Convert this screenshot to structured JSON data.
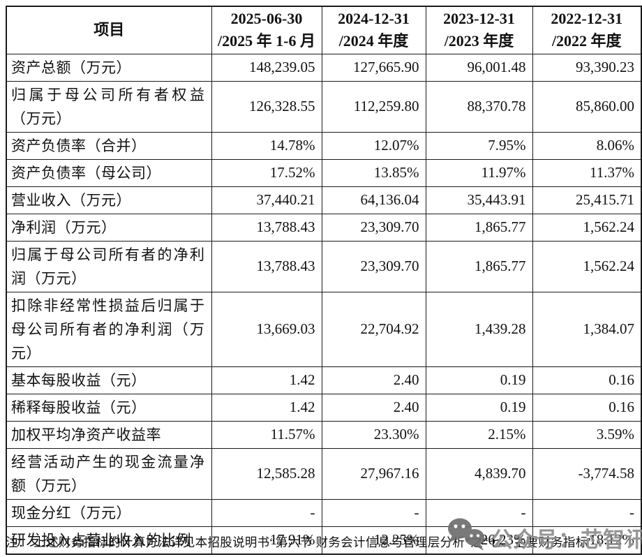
{
  "table": {
    "header": {
      "item_label": "项目",
      "periods": [
        {
          "line1": "2025-06-30",
          "line2": "/2025 年 1-6 月"
        },
        {
          "line1": "2024-12-31",
          "line2": "/2024 年度"
        },
        {
          "line1": "2023-12-31",
          "line2": "/2023 年度"
        },
        {
          "line1": "2022-12-31",
          "line2": "/2022 年度"
        }
      ]
    },
    "rows": [
      {
        "label": "资产总额（万元）",
        "tall": false,
        "values": [
          "148,239.05",
          "127,665.90",
          "96,001.48",
          "93,390.23"
        ]
      },
      {
        "label": "归属于母公司所有者权益（万元）",
        "tall": true,
        "values": [
          "126,328.55",
          "112,259.80",
          "88,370.78",
          "85,860.00"
        ]
      },
      {
        "label": "资产负债率（合并）",
        "tall": false,
        "values": [
          "14.78%",
          "12.07%",
          "7.95%",
          "8.06%"
        ]
      },
      {
        "label": "资产负债率（母公司）",
        "tall": false,
        "values": [
          "17.52%",
          "13.85%",
          "11.97%",
          "11.37%"
        ]
      },
      {
        "label": "营业收入（万元）",
        "tall": false,
        "values": [
          "37,440.21",
          "64,136.04",
          "35,443.91",
          "25,415.71"
        ]
      },
      {
        "label": "净利润（万元）",
        "tall": false,
        "values": [
          "13,788.43",
          "23,309.70",
          "1,865.77",
          "1,562.24"
        ]
      },
      {
        "label": "归属于母公司所有者的净利润（万元）",
        "tall": true,
        "values": [
          "13,788.43",
          "23,309.70",
          "1,865.77",
          "1,562.24"
        ]
      },
      {
        "label": "扣除非经常性损益后归属于母公司所有者的净利润（万元）",
        "tall": true,
        "values": [
          "13,669.03",
          "22,704.92",
          "1,439.28",
          "1,384.07"
        ]
      },
      {
        "label": "基本每股收益（元）",
        "tall": false,
        "values": [
          "1.42",
          "2.40",
          "0.19",
          "0.16"
        ]
      },
      {
        "label": "稀释每股收益（元）",
        "tall": false,
        "values": [
          "1.42",
          "2.40",
          "0.19",
          "0.16"
        ]
      },
      {
        "label": "加权平均净资产收益率",
        "tall": false,
        "values": [
          "11.57%",
          "23.30%",
          "2.15%",
          "3.59%"
        ]
      },
      {
        "label": "经营活动产生的现金流量净额（万元）",
        "tall": true,
        "values": [
          "12,585.28",
          "27,967.16",
          "4,839.70",
          "-3,774.58"
        ]
      },
      {
        "label": "现金分红（万元）",
        "tall": false,
        "values": [
          "-",
          "-",
          "-",
          "-"
        ]
      },
      {
        "label": "研发投入占营业收入的比例",
        "tall": false,
        "values": [
          "17.91%",
          "12.25%",
          "26.23%",
          "18.12%"
        ]
      }
    ]
  },
  "footnote": "注： 上述财务指标的计算方法详见本招股说明书“第六节 财务会计信息与管理层分析”之“七、主要财务指标”",
  "watermark": {
    "icon": "wechat-icon",
    "text": "公众号：芯智讯",
    "text_color": "#8d8d8d",
    "icon_color": "#6e6e6e"
  }
}
